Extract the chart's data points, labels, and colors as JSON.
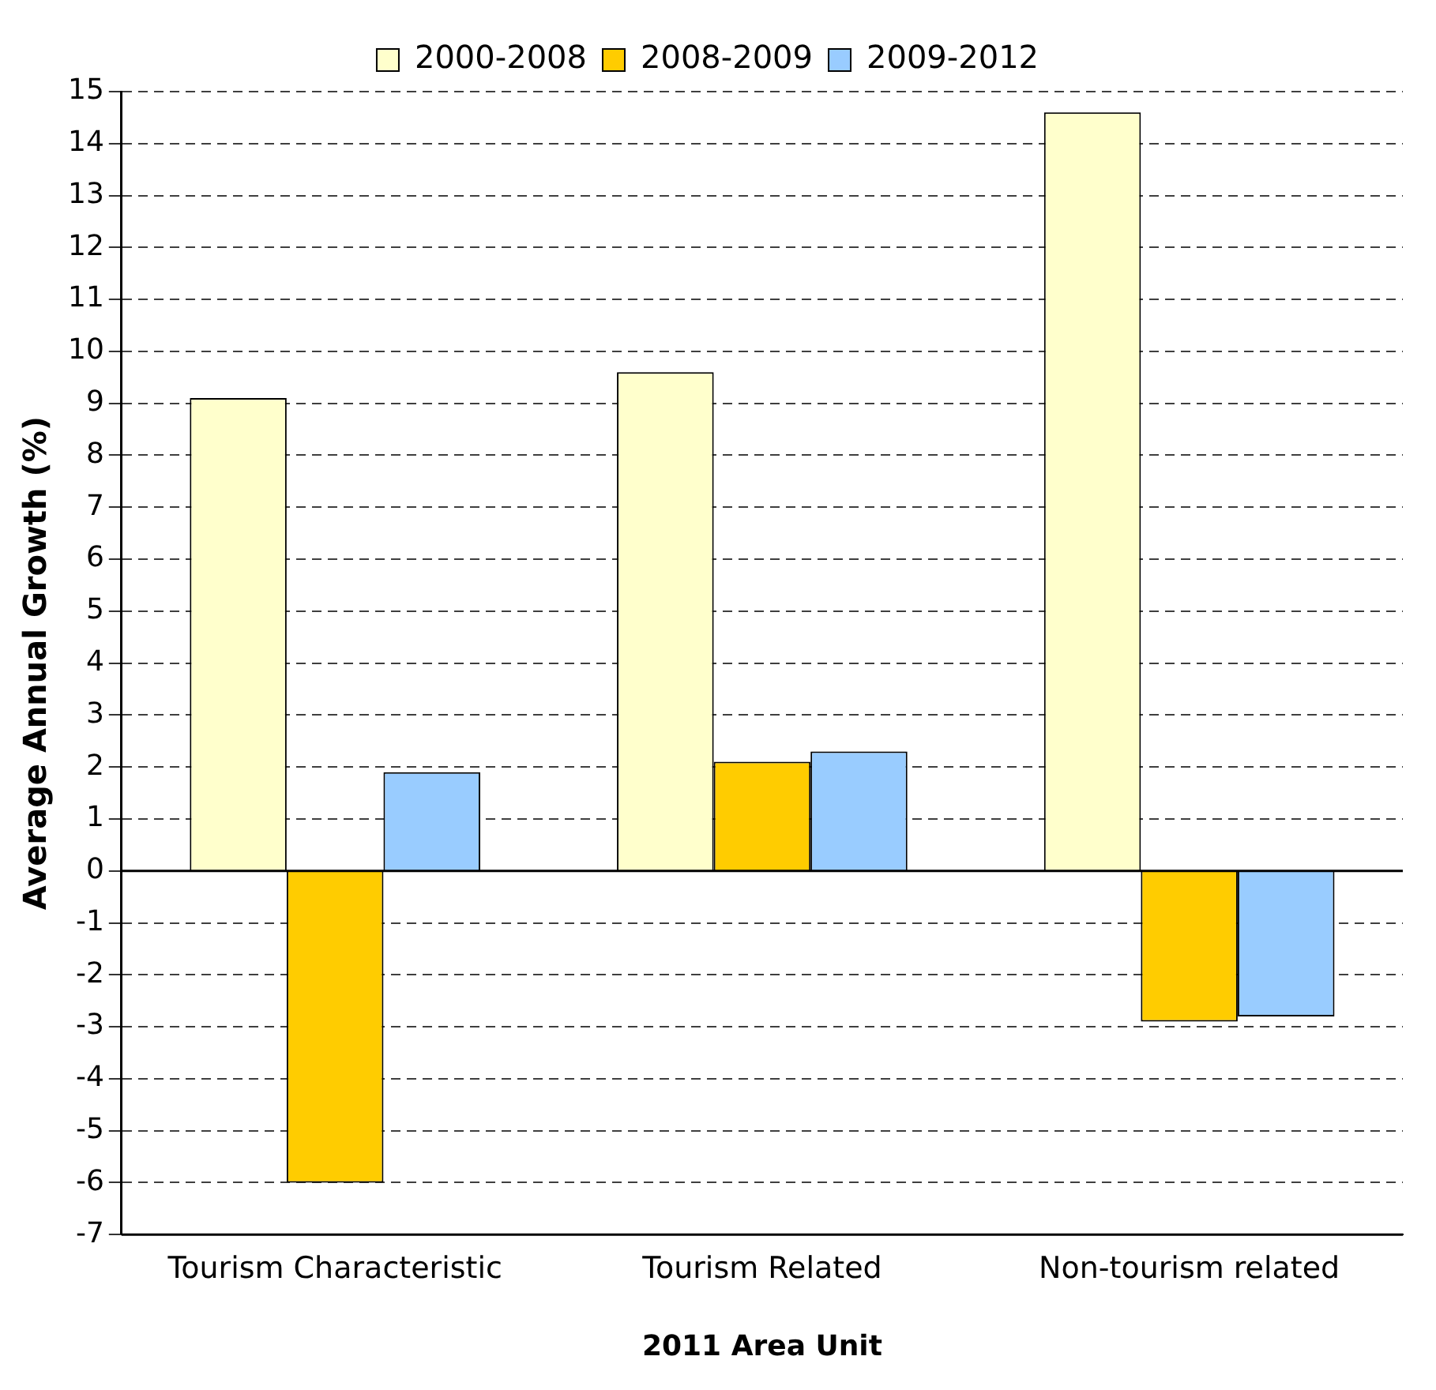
{
  "chart_data": {
    "type": "bar",
    "xlabel": "2011 Area Unit",
    "ylabel": "Average Annual Growth (%)",
    "categories": [
      "Tourism Characteristic",
      "Tourism Related",
      "Non-tourism related"
    ],
    "series": [
      {
        "name": "2000-2008",
        "color": "#ffffcc",
        "values": [
          9.1,
          9.6,
          14.6
        ]
      },
      {
        "name": "2008-2009",
        "color": "#ffcc00",
        "values": [
          -6.0,
          2.1,
          -2.9
        ]
      },
      {
        "name": "2009-2012",
        "color": "#99ccff",
        "values": [
          1.9,
          2.3,
          -2.8
        ]
      }
    ],
    "ylim": [
      -7,
      15
    ],
    "yticks": [
      -7,
      -6,
      -5,
      -4,
      -3,
      -2,
      -1,
      0,
      1,
      2,
      3,
      4,
      5,
      6,
      7,
      8,
      9,
      10,
      11,
      12,
      13,
      14,
      15
    ],
    "grid": "y",
    "legend": "top"
  }
}
